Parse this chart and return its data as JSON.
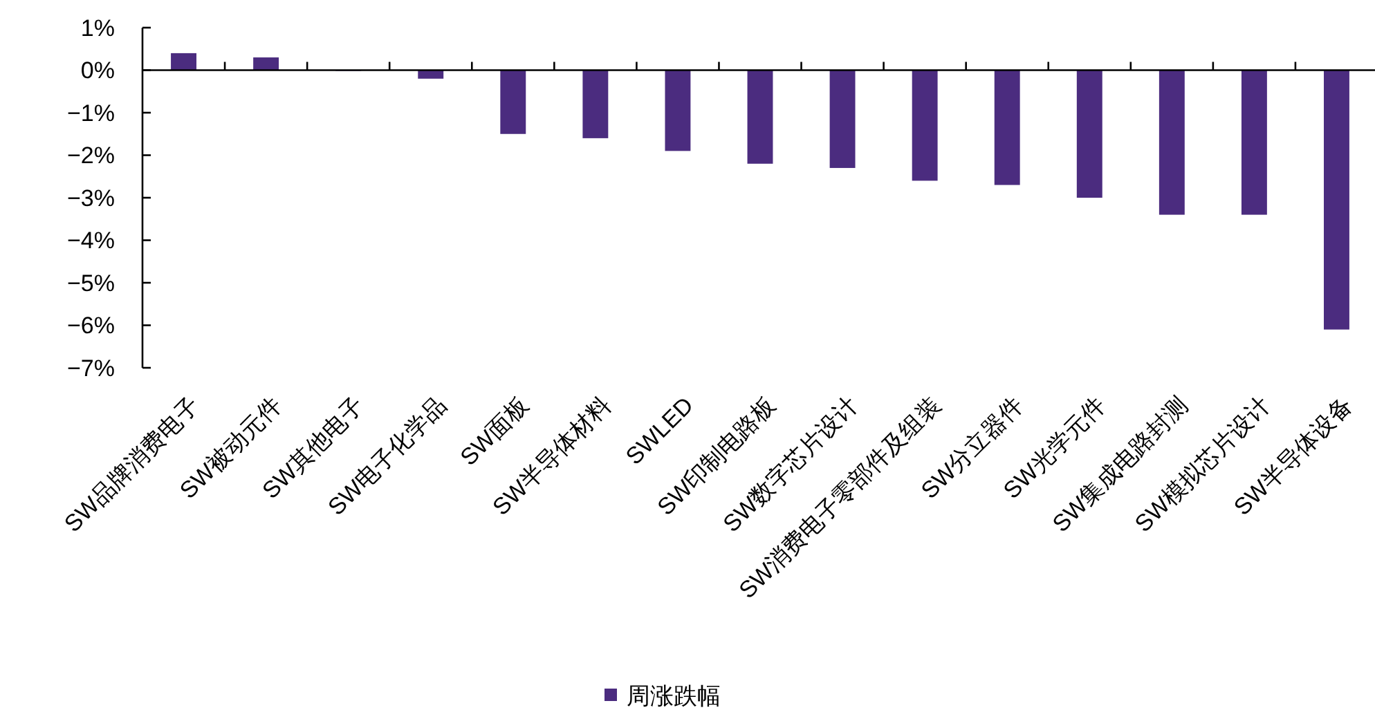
{
  "chart_data": {
    "type": "bar",
    "categories": [
      "SW品牌消费电子",
      "SW被动元件",
      "SW其他电子",
      "SW电子化学品",
      "SW面板",
      "SW半导体材料",
      "SWLED",
      "SW印制电路板",
      "SW数字芯片设计",
      "SW消费电子零部件及组装",
      "SW分立器件",
      "SW光学元件",
      "SW集成电路封测",
      "SW模拟芯片设计",
      "SW半导体设备"
    ],
    "series": [
      {
        "name": "周涨跌幅",
        "color": "#4b2c7f",
        "values": [
          0.4,
          0.3,
          0.0,
          -0.2,
          -1.5,
          -1.6,
          -1.9,
          -2.2,
          -2.3,
          -2.6,
          -2.7,
          -3.0,
          -3.4,
          -3.4,
          -6.1
        ]
      }
    ],
    "ylim": [
      -7,
      1
    ],
    "yticks": [
      {
        "value": 1,
        "label": "1%"
      },
      {
        "value": 0,
        "label": "0%"
      },
      {
        "value": -1,
        "label": "−1%"
      },
      {
        "value": -2,
        "label": "−2%"
      },
      {
        "value": -3,
        "label": "−3%"
      },
      {
        "value": -4,
        "label": "−4%"
      },
      {
        "value": -5,
        "label": "−5%"
      },
      {
        "value": -6,
        "label": "−6%"
      },
      {
        "value": -7,
        "label": "−7%"
      }
    ],
    "legend": "bottom"
  }
}
